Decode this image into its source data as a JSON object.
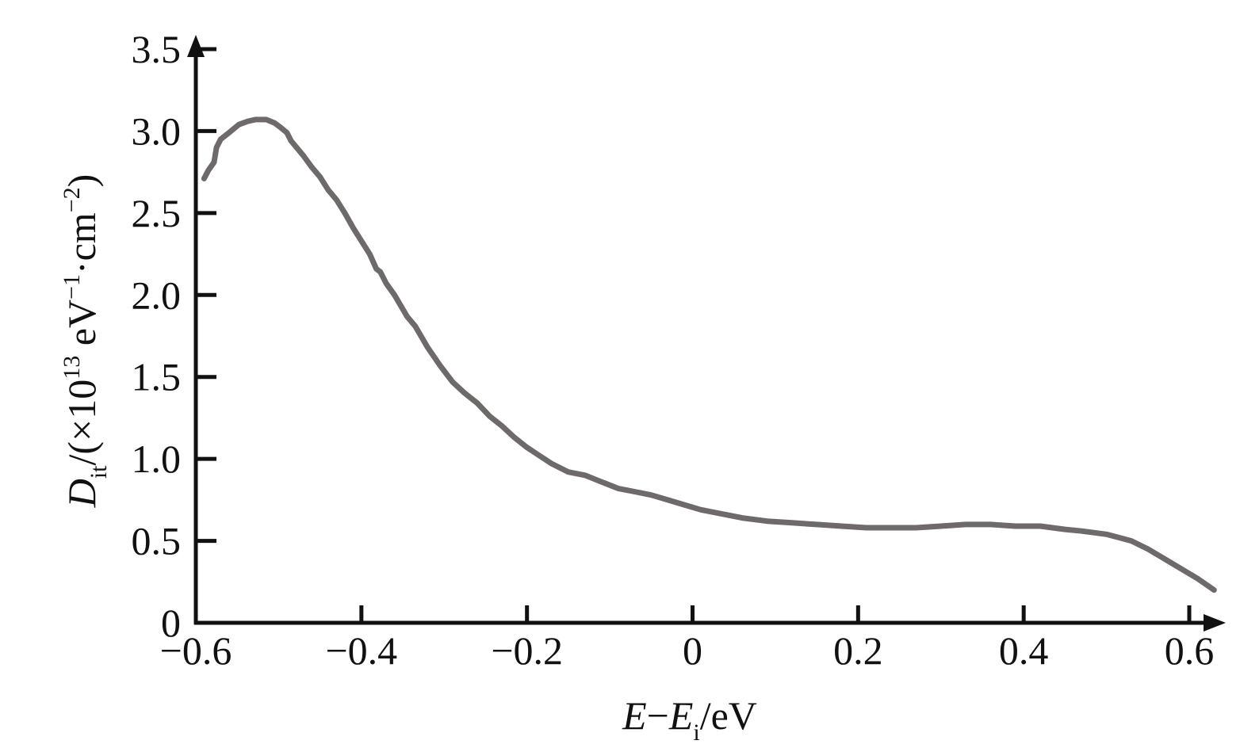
{
  "chart_data": {
    "type": "line",
    "title": "",
    "xlabel": {
      "main": "E",
      "dash": "−",
      "main2": "E",
      "sub": "i",
      "unit": "/eV"
    },
    "ylabel": {
      "main": "D",
      "sub": "it",
      "pre": "/(×10",
      "exp": "13",
      "mid": " eV",
      "exp2": "−1",
      "mid2": "·cm",
      "exp3": "−2",
      "post": ")"
    },
    "xlim": [
      -0.6,
      0.64
    ],
    "ylim": [
      0,
      3.5
    ],
    "x_ticks": [
      -0.6,
      -0.4,
      -0.2,
      0,
      0.2,
      0.4,
      0.6
    ],
    "x_tick_labels": [
      "−0.6",
      "−0.4",
      "−0.2",
      "0",
      "0.2",
      "0.4",
      "0.6"
    ],
    "y_ticks": [
      0,
      0.5,
      1.0,
      1.5,
      2.0,
      2.5,
      3.0,
      3.5
    ],
    "y_tick_labels": [
      "0",
      "0.5",
      "1.0",
      "1.5",
      "2.0",
      "2.5",
      "3.0",
      "3.5"
    ],
    "grid": false,
    "line_color": "#6e6a6a",
    "axis_color": "#111111",
    "series": [
      {
        "x": [
          -0.59,
          -0.585,
          -0.578,
          -0.575,
          -0.57,
          -0.56,
          -0.548,
          -0.537,
          -0.528,
          -0.515,
          -0.505,
          -0.497,
          -0.49,
          -0.485,
          -0.48,
          -0.47,
          -0.46,
          -0.45,
          -0.44,
          -0.43,
          -0.42,
          -0.41,
          -0.4,
          -0.39,
          -0.382,
          -0.377,
          -0.37,
          -0.36,
          -0.345,
          -0.335,
          -0.32,
          -0.305,
          -0.29,
          -0.275,
          -0.26,
          -0.245,
          -0.23,
          -0.215,
          -0.2,
          -0.185,
          -0.17,
          -0.15,
          -0.13,
          -0.11,
          -0.09,
          -0.07,
          -0.05,
          -0.03,
          -0.01,
          0.01,
          0.03,
          0.06,
          0.09,
          0.12,
          0.15,
          0.18,
          0.21,
          0.24,
          0.27,
          0.3,
          0.33,
          0.36,
          0.39,
          0.42,
          0.45,
          0.47,
          0.5,
          0.53,
          0.55,
          0.57,
          0.59,
          0.61,
          0.63
        ],
        "y": [
          2.71,
          2.76,
          2.81,
          2.9,
          2.95,
          2.99,
          3.04,
          3.06,
          3.07,
          3.07,
          3.05,
          3.02,
          2.99,
          2.94,
          2.91,
          2.85,
          2.78,
          2.72,
          2.64,
          2.58,
          2.5,
          2.41,
          2.33,
          2.25,
          2.16,
          2.14,
          2.07,
          2.0,
          1.87,
          1.81,
          1.68,
          1.57,
          1.47,
          1.4,
          1.34,
          1.26,
          1.2,
          1.13,
          1.07,
          1.02,
          0.97,
          0.92,
          0.9,
          0.86,
          0.82,
          0.8,
          0.78,
          0.75,
          0.72,
          0.69,
          0.67,
          0.64,
          0.62,
          0.61,
          0.6,
          0.59,
          0.58,
          0.58,
          0.58,
          0.59,
          0.6,
          0.6,
          0.59,
          0.59,
          0.57,
          0.56,
          0.54,
          0.5,
          0.45,
          0.39,
          0.33,
          0.27,
          0.2
        ]
      }
    ]
  }
}
